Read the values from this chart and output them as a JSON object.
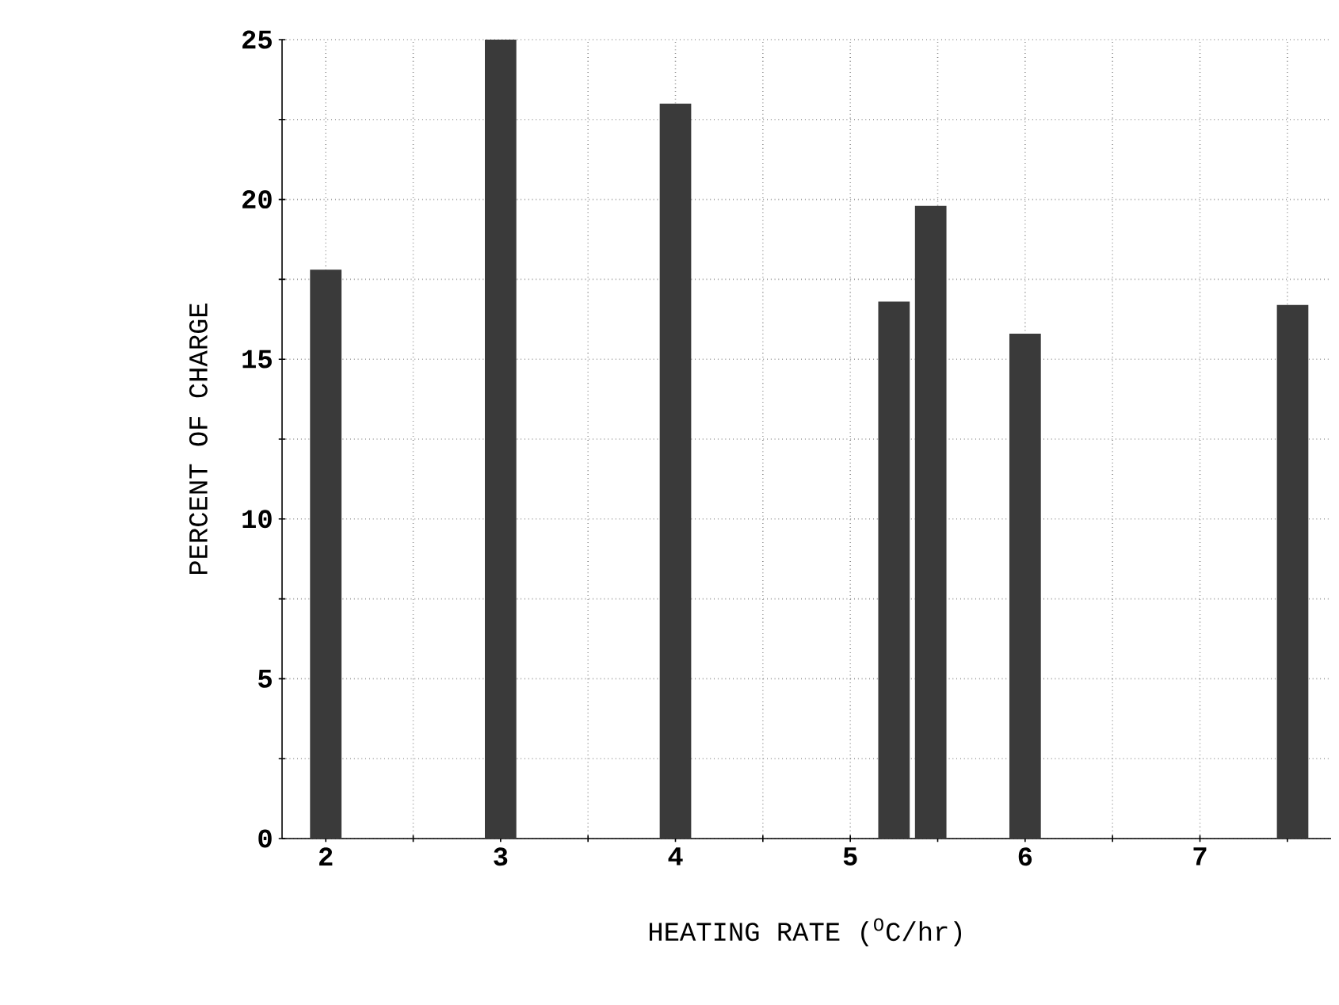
{
  "chart_data": {
    "type": "bar",
    "xlabel": "HEATING RATE ($^{O}$C/hr)",
    "ylabel": "PERCENT OF CHARGE",
    "series": [
      {
        "color": "#3a3a3a",
        "x": [
          2.0,
          3.0,
          4.0,
          5.25,
          5.46,
          6.0,
          7.53
        ],
        "values": [
          17.8,
          25,
          23,
          16.8,
          19.8,
          15.8,
          16.7
        ]
      }
    ],
    "xlim": [
      1.75,
      7.75
    ],
    "xticks": [
      2,
      {
        "value": 2.5,
        "label": null
      },
      3,
      {
        "value": 3.5,
        "label": null
      },
      4,
      {
        "value": 4.5,
        "label": null
      },
      5,
      {
        "value": 5.5,
        "label": null
      },
      6,
      {
        "value": 6.5,
        "label": null
      },
      7,
      {
        "value": 7.5,
        "label": null
      }
    ],
    "ylim": [
      0,
      25
    ],
    "yticks": [
      0,
      {
        "value": 2.5,
        "label": null
      },
      5,
      {
        "value": 7.5,
        "label": null
      },
      10,
      {
        "value": 12.5,
        "label": null
      },
      15,
      {
        "value": 17.5,
        "label": null
      },
      20,
      {
        "value": 22.5,
        "label": null
      },
      25
    ],
    "grid": true
  }
}
